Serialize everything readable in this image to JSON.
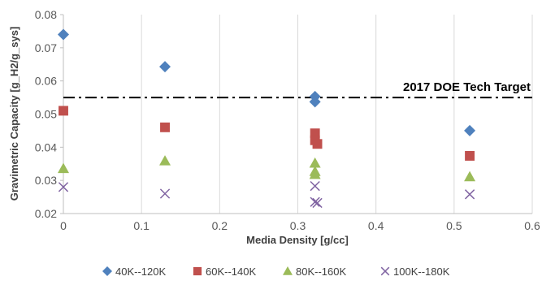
{
  "chart_data": {
    "type": "scatter",
    "xlabel": "Media Density [g/cc]",
    "ylabel": "Gravimetric Capacity [g_H2/g_sys]",
    "xlim": [
      0,
      0.6
    ],
    "ylim": [
      0.02,
      0.08
    ],
    "x_ticks": [
      "0",
      "0.1",
      "0.2",
      "0.3",
      "0.4",
      "0.5",
      "0.6"
    ],
    "y_ticks": [
      "0.02",
      "0.03",
      "0.04",
      "0.05",
      "0.06",
      "0.07",
      "0.08"
    ],
    "grid": "vertical",
    "legend_position": "bottom",
    "reference_line": {
      "y": 0.055,
      "label": "2017 DOE Tech Target",
      "style": "dash-dot",
      "color": "#000000"
    },
    "series": [
      {
        "name": "40K--120K",
        "marker": "diamond",
        "color": "#4f81bd",
        "points": [
          [
            0,
            0.074
          ],
          [
            0.13,
            0.0643
          ],
          [
            0.322,
            0.0553
          ],
          [
            0.322,
            0.0537
          ],
          [
            0.52,
            0.045
          ]
        ]
      },
      {
        "name": "60K--140K",
        "marker": "square",
        "color": "#c0504d",
        "points": [
          [
            0,
            0.051
          ],
          [
            0.13,
            0.046
          ],
          [
            0.322,
            0.0442
          ],
          [
            0.322,
            0.0421
          ],
          [
            0.325,
            0.041
          ],
          [
            0.52,
            0.0374
          ]
        ]
      },
      {
        "name": "80K--160K",
        "marker": "triangle",
        "color": "#9bbb59",
        "points": [
          [
            0,
            0.0336
          ],
          [
            0.13,
            0.0359
          ],
          [
            0.322,
            0.0352
          ],
          [
            0.322,
            0.0327
          ],
          [
            0.322,
            0.0318
          ],
          [
            0.52,
            0.0311
          ]
        ]
      },
      {
        "name": "100K--180K",
        "marker": "x",
        "color": "#8064a2",
        "points": [
          [
            0,
            0.028
          ],
          [
            0.13,
            0.026
          ],
          [
            0.322,
            0.0283
          ],
          [
            0.322,
            0.0235
          ],
          [
            0.325,
            0.0232
          ],
          [
            0.52,
            0.0258
          ]
        ]
      }
    ]
  }
}
